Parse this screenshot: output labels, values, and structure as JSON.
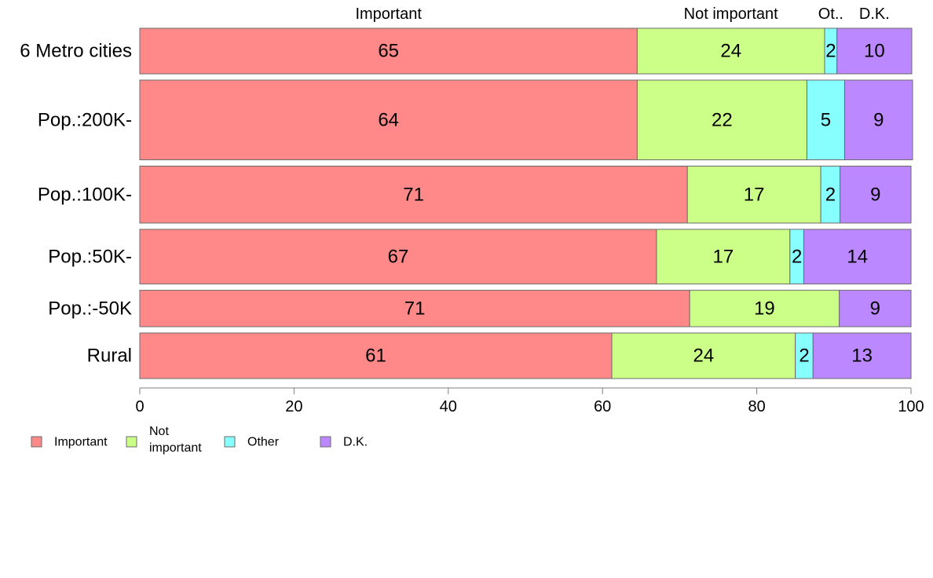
{
  "chart_data": {
    "type": "bar",
    "orientation": "horizontal",
    "stacked": true,
    "categories": [
      "6 Metro cities",
      "Pop.:200K-",
      "Pop.:100K-",
      "Pop.:50K-",
      "Pop.:-50K",
      "Rural"
    ],
    "series": [
      {
        "name": "Important",
        "color": "#ff8888",
        "values": [
          64.5,
          64.5,
          71,
          67,
          71.3,
          61.2
        ]
      },
      {
        "name": "Not important",
        "color": "#ccff88",
        "values": [
          24.3,
          22,
          17.3,
          17.3,
          19.4,
          23.8
        ]
      },
      {
        "name": "Other",
        "color": "#88ffff",
        "values": [
          1.6,
          4.9,
          2.5,
          1.8,
          0,
          2.3
        ]
      },
      {
        "name": "D.K.",
        "color": "#bb88ff",
        "values": [
          9.7,
          8.8,
          9.2,
          13.9,
          9.3,
          12.7
        ]
      }
    ],
    "data_labels": [
      [
        "65",
        "24",
        "2",
        "10"
      ],
      [
        "64",
        "22",
        "5",
        "9"
      ],
      [
        "71",
        "17",
        "2",
        "9"
      ],
      [
        "67",
        "17",
        "2",
        "14"
      ],
      [
        "71",
        "19",
        "",
        "9"
      ],
      [
        "61",
        "24",
        "2",
        "13"
      ]
    ],
    "column_headers": [
      "Important",
      "Not important",
      "Ot..",
      "D.K."
    ],
    "row_weights": [
      1,
      1.75,
      1.25,
      1.2,
      0.8,
      1
    ],
    "xlim": [
      0,
      100
    ],
    "x_ticks": [
      0,
      20,
      40,
      60,
      80,
      100
    ],
    "grid": false,
    "legend": {
      "position": "bottom-left",
      "items": [
        {
          "label": "Important",
          "color": "#ff8888"
        },
        {
          "label": "Not\nimportant",
          "color": "#ccff88"
        },
        {
          "label": "Other",
          "color": "#88ffff"
        },
        {
          "label": "D.K.",
          "color": "#bb88ff"
        }
      ]
    }
  }
}
